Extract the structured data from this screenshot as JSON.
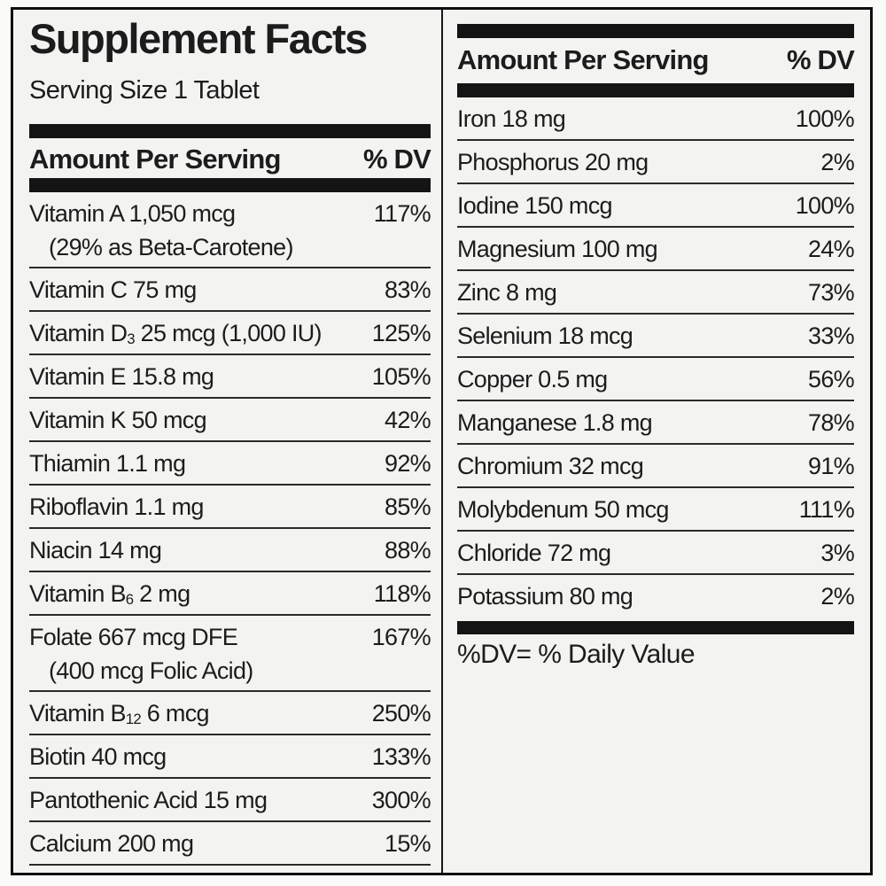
{
  "label": {
    "title": "Supplement Facts",
    "serving_size": "Serving Size 1 Tablet",
    "column_header": {
      "amount": "Amount Per Serving",
      "dv": "% DV"
    },
    "footnote": "%DV= % Daily Value",
    "colors": {
      "ink": "#1c1c1c",
      "bar": "#141414",
      "rule": "#2a2a2a",
      "label_bg": "#f3f3f1",
      "page_bg": "#fafaf8",
      "border": "#0e0e0e"
    },
    "left_rows": [
      {
        "name": "Vitamin A 1,050 mcg",
        "dv": "117%",
        "note": "(29% as Beta-Carotene)"
      },
      {
        "name": "Vitamin C 75 mg",
        "dv": "83%"
      },
      {
        "name": "Vitamin D_{3} 25 mcg (1,000 IU)",
        "dv": "125%"
      },
      {
        "name": "Vitamin E 15.8 mg",
        "dv": "105%"
      },
      {
        "name": "Vitamin K 50 mcg",
        "dv": "42%"
      },
      {
        "name": "Thiamin 1.1 mg",
        "dv": "92%"
      },
      {
        "name": "Riboflavin 1.1 mg",
        "dv": "85%"
      },
      {
        "name": "Niacin 14 mg",
        "dv": "88%"
      },
      {
        "name": "Vitamin B_{6} 2 mg",
        "dv": "118%"
      },
      {
        "name": "Folate 667 mcg DFE",
        "dv": "167%",
        "note": "(400 mcg Folic Acid)"
      },
      {
        "name": "Vitamin B_{12} 6 mcg",
        "dv": "250%"
      },
      {
        "name": "Biotin 40 mcg",
        "dv": "133%"
      },
      {
        "name": "Pantothenic Acid 15 mg",
        "dv": "300%"
      },
      {
        "name": "Calcium 200 mg",
        "dv": "15%"
      }
    ],
    "right_rows": [
      {
        "name": "Iron 18 mg",
        "dv": "100%"
      },
      {
        "name": "Phosphorus 20 mg",
        "dv": "2%"
      },
      {
        "name": "Iodine 150 mcg",
        "dv": "100%"
      },
      {
        "name": "Magnesium 100 mg",
        "dv": "24%"
      },
      {
        "name": "Zinc 8 mg",
        "dv": "73%"
      },
      {
        "name": "Selenium 18 mcg",
        "dv": "33%"
      },
      {
        "name": "Copper 0.5 mg",
        "dv": "56%"
      },
      {
        "name": "Manganese 1.8 mg",
        "dv": "78%"
      },
      {
        "name": "Chromium 32 mcg",
        "dv": "91%"
      },
      {
        "name": "Molybdenum 50 mcg",
        "dv": "111%"
      },
      {
        "name": "Chloride 72 mg",
        "dv": "3%"
      },
      {
        "name": "Potassium 80 mg",
        "dv": "2%"
      }
    ]
  }
}
